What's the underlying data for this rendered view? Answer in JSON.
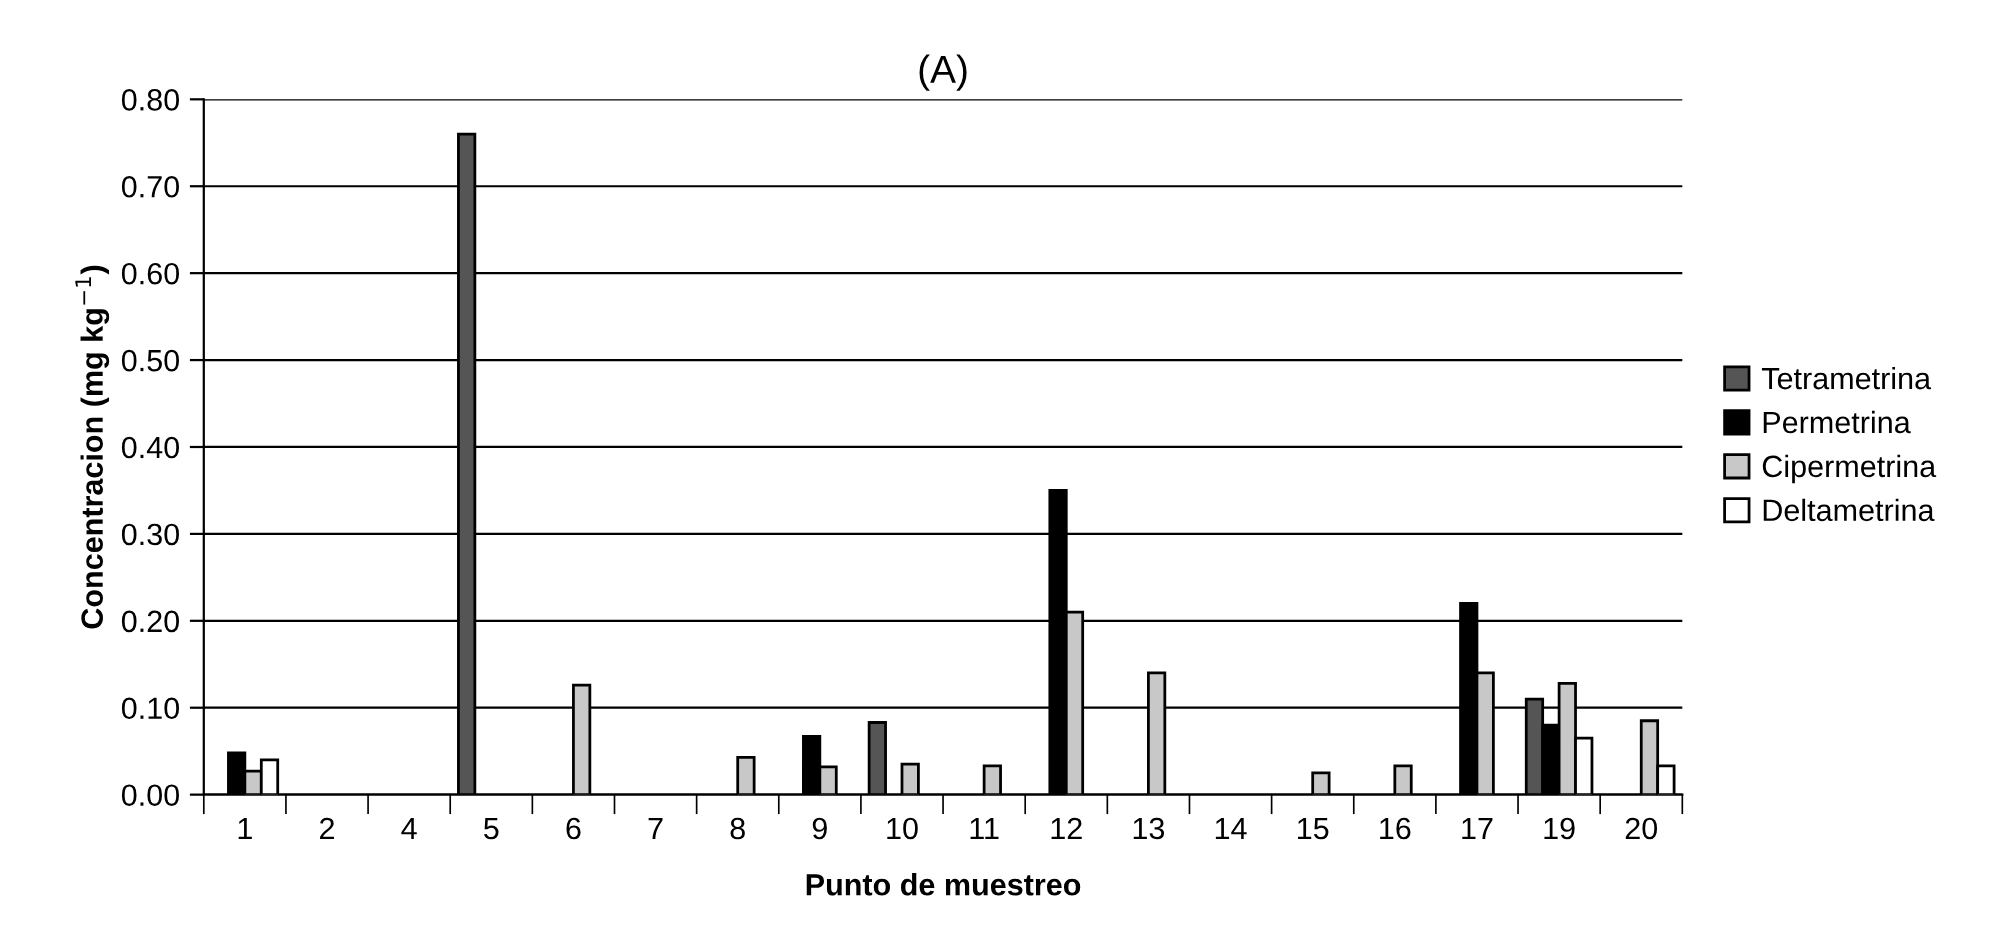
{
  "chart_data": {
    "type": "bar",
    "title": "(A)",
    "xlabel": "Punto de muestreo",
    "ylabel": "Concentracion (mg kg$^{−1}$)",
    "categories": [
      "1",
      "2",
      "4",
      "5",
      "6",
      "7",
      "8",
      "9",
      "10",
      "11",
      "12",
      "13",
      "14",
      "15",
      "16",
      "17",
      "19",
      "20"
    ],
    "series": [
      {
        "name": "Tetrametrina",
        "color": "#555555",
        "values": [
          null,
          null,
          null,
          0.76,
          null,
          null,
          null,
          null,
          0.083,
          null,
          null,
          null,
          null,
          null,
          null,
          null,
          0.11,
          null
        ]
      },
      {
        "name": "Permetrina",
        "color": "#000000",
        "values": [
          0.048,
          null,
          null,
          null,
          null,
          null,
          null,
          0.067,
          null,
          null,
          0.35,
          null,
          null,
          null,
          null,
          0.22,
          0.08,
          null
        ]
      },
      {
        "name": "Cipermetrina",
        "color": "#c8c8c8",
        "values": [
          0.027,
          null,
          null,
          null,
          0.126,
          null,
          0.043,
          0.032,
          0.035,
          0.033,
          0.21,
          0.14,
          null,
          0.025,
          0.033,
          0.14,
          0.128,
          0.085
        ]
      },
      {
        "name": "Deltametrina",
        "color": "#ffffff",
        "values": [
          0.04,
          null,
          null,
          null,
          null,
          null,
          null,
          null,
          null,
          null,
          null,
          null,
          null,
          null,
          null,
          null,
          0.065,
          0.033
        ]
      }
    ],
    "ylim": [
      0,
      0.8
    ],
    "yticks": [
      {
        "value": 0,
        "label": "0.00"
      },
      {
        "value": 0.1,
        "label": "0.10"
      },
      {
        "value": 0.2,
        "label": "0.20"
      },
      {
        "value": 0.3,
        "label": "0.30"
      },
      {
        "value": 0.4,
        "label": "0.40"
      },
      {
        "value": 0.5,
        "label": "0.50"
      },
      {
        "value": 0.6,
        "label": "0.60"
      },
      {
        "value": 0.7,
        "label": "0.70"
      },
      {
        "value": 0.8,
        "label": "0.80"
      }
    ],
    "grid": "y",
    "legend": "right"
  }
}
